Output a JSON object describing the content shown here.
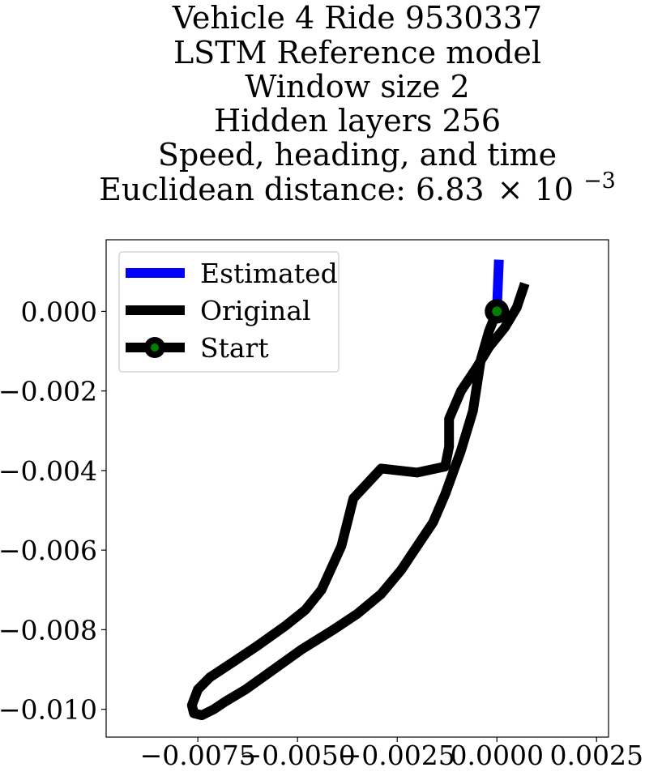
{
  "chart_data": {
    "type": "line",
    "title_lines": [
      "Vehicle 4 Ride 9530337",
      "LSTM Reference model",
      "Window size 2",
      "Hidden layers 256",
      "Speed, heading, and time"
    ],
    "distance_label": "Euclidean distance: 6.83",
    "distance_times": "×",
    "distance_base": "10",
    "distance_exponent": "−3",
    "xlim": [
      -0.0098,
      0.0028
    ],
    "ylim": [
      -0.0107,
      0.0018
    ],
    "x_ticks": [
      -0.0075,
      -0.005,
      -0.0025,
      0.0,
      0.0025
    ],
    "x_tick_labels": [
      "−0.0075",
      "−0.0050",
      "−0.0025",
      "0.0000",
      "0.0025"
    ],
    "y_ticks": [
      0.0,
      -0.002,
      -0.004,
      -0.006,
      -0.008,
      -0.01
    ],
    "y_tick_labels": [
      "0.000",
      "−0.002",
      "−0.004",
      "−0.006",
      "−0.008",
      "−0.010"
    ],
    "grid": false,
    "legend_position": "top-left",
    "series": [
      {
        "name": "Estimated",
        "color": "#0000ff",
        "points": [
          [
            0.0,
            0.0
          ],
          [
            5e-05,
            0.0013
          ]
        ]
      },
      {
        "name": "Original",
        "color": "#000000",
        "points": [
          [
            0.0,
            0.0
          ],
          [
            -0.0002,
            -0.0005
          ],
          [
            -0.0004,
            -0.0012
          ],
          [
            -0.0006,
            -0.0025
          ],
          [
            -0.0009,
            -0.0035
          ],
          [
            -0.0013,
            -0.0046
          ],
          [
            -0.0016,
            -0.0053
          ],
          [
            -0.002,
            -0.0059
          ],
          [
            -0.0024,
            -0.0065
          ],
          [
            -0.0029,
            -0.0071
          ],
          [
            -0.0035,
            -0.0076
          ],
          [
            -0.0041,
            -0.008
          ],
          [
            -0.0049,
            -0.0085
          ],
          [
            -0.0056,
            -0.009
          ],
          [
            -0.0063,
            -0.0095
          ],
          [
            -0.0068,
            -0.0098
          ],
          [
            -0.0071,
            -0.01
          ],
          [
            -0.0074,
            -0.01015
          ],
          [
            -0.0076,
            -0.0101
          ],
          [
            -0.00765,
            -0.0099
          ],
          [
            -0.0075,
            -0.0095
          ],
          [
            -0.0072,
            -0.0092
          ],
          [
            -0.0066,
            -0.0088
          ],
          [
            -0.006,
            -0.0084
          ],
          [
            -0.0053,
            -0.0079
          ],
          [
            -0.0048,
            -0.0075
          ],
          [
            -0.0044,
            -0.007
          ],
          [
            -0.0039,
            -0.0059
          ],
          [
            -0.0036,
            -0.0047
          ],
          [
            -0.0029,
            -0.00395
          ],
          [
            -0.002,
            -0.00405
          ],
          [
            -0.0013,
            -0.0039
          ],
          [
            -0.0012,
            -0.0034
          ],
          [
            -0.0012,
            -0.0027
          ],
          [
            -0.0009,
            -0.002
          ],
          [
            -0.0005,
            -0.0014
          ],
          [
            -0.0002,
            -0.0009
          ],
          [
            0.0002,
            -0.0004
          ],
          [
            0.0005,
            0.0001
          ],
          [
            0.0007,
            0.0007
          ]
        ]
      },
      {
        "name": "Start",
        "color": "#000000",
        "marker_color": "#008000",
        "points": [
          [
            0.0,
            0.0
          ]
        ]
      }
    ]
  }
}
